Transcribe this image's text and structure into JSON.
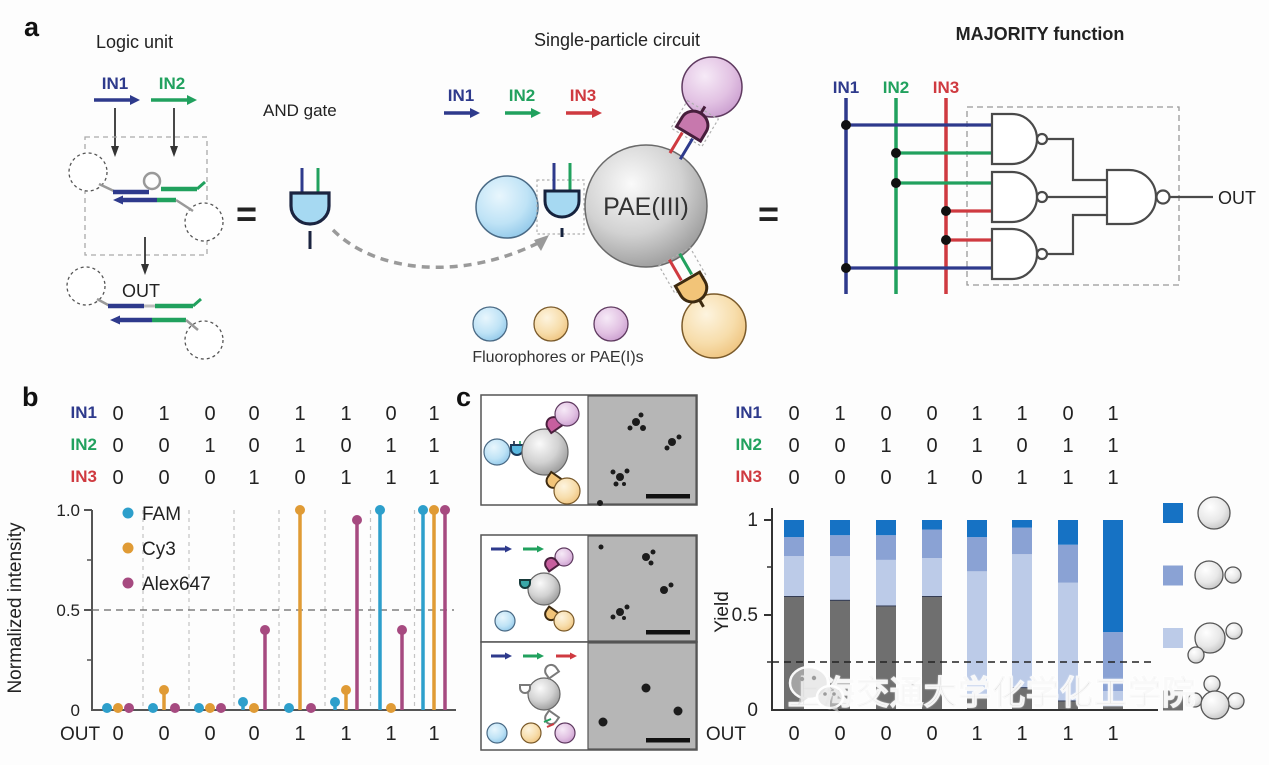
{
  "figure": {
    "panel_a": {
      "label": "a",
      "logic_unit": {
        "title": "Logic unit",
        "in1": "IN1",
        "in2": "IN2",
        "out": "OUT"
      },
      "and_gate_label": "AND gate",
      "equals": "=",
      "single_particle": {
        "title": "Single-particle circuit",
        "in1": "IN1",
        "in2": "IN2",
        "in3": "IN3",
        "core_label": "PAE(III)",
        "caption": "Fluorophores or PAE(I)s"
      },
      "majority": {
        "title": "MAJORITY function",
        "in1": "IN1",
        "in2": "IN2",
        "in3": "IN3",
        "out": "OUT"
      }
    },
    "panel_b": {
      "label": "b",
      "ylabel": "Normalized intensity",
      "yticks": [
        "1.0",
        "0.5",
        "0"
      ]
    },
    "panel_c": {
      "label": "c",
      "ylabel": "Yield",
      "yticks": [
        "1",
        "0.5",
        "0"
      ]
    },
    "watermark": {
      "text": "上海交通大学化学化工学院"
    }
  },
  "truth_table": {
    "rows": [
      {
        "label": "IN1",
        "color": "#2e3a8c",
        "values": [
          "0",
          "1",
          "0",
          "0",
          "1",
          "1",
          "0",
          "1"
        ]
      },
      {
        "label": "IN2",
        "color": "#21a15e",
        "values": [
          "0",
          "0",
          "1",
          "0",
          "1",
          "0",
          "1",
          "1"
        ]
      },
      {
        "label": "IN3",
        "color": "#cf3a40",
        "values": [
          "0",
          "0",
          "0",
          "1",
          "0",
          "1",
          "1",
          "1"
        ]
      }
    ],
    "out": {
      "label": "OUT",
      "values": [
        "0",
        "0",
        "0",
        "0",
        "1",
        "1",
        "1",
        "1"
      ]
    }
  },
  "chart_data": [
    {
      "type": "stem",
      "panel": "b",
      "title": "",
      "xlabel": "",
      "ylabel": "Normalized intensity",
      "ylim": [
        0,
        1
      ],
      "yticks": [
        0,
        0.5,
        1.0
      ],
      "threshold_line": 0.5,
      "grid": "dashed vertical separators between input columns",
      "legend_position": "upper left",
      "categories_in1in2in3": [
        "000",
        "100",
        "010",
        "001",
        "110",
        "101",
        "011",
        "111"
      ],
      "series": [
        {
          "name": "FAM",
          "color": "#2d9fcb",
          "values": [
            0.01,
            0.01,
            0.01,
            0.04,
            0.01,
            0.04,
            1.0,
            1.0
          ]
        },
        {
          "name": "Cy3",
          "color": "#e09b35",
          "values": [
            0.01,
            0.1,
            0.01,
            0.01,
            1.0,
            0.1,
            0.01,
            1.0
          ]
        },
        {
          "name": "Alex647",
          "color": "#a64a80",
          "values": [
            0.01,
            0.01,
            0.01,
            0.4,
            0.01,
            0.95,
            0.4,
            1.0
          ]
        }
      ],
      "out_row": [
        "0",
        "0",
        "0",
        "0",
        "1",
        "1",
        "1",
        "1"
      ]
    },
    {
      "type": "stacked-bar",
      "panel": "c",
      "title": "",
      "xlabel": "",
      "ylabel": "Yield",
      "ylim": [
        0,
        1
      ],
      "yticks": [
        0,
        0.5,
        1
      ],
      "threshold_line": 0.25,
      "categories_in1in2in3": [
        "000",
        "100",
        "010",
        "001",
        "110",
        "101",
        "011",
        "111"
      ],
      "series_bottom_to_top": [
        {
          "name": "PAE(III) with 3 satellite PAE(I)s",
          "color": "#6f6f6f",
          "values": [
            0.6,
            0.58,
            0.55,
            0.6,
            0.08,
            0.12,
            0.05,
            0.02
          ]
        },
        {
          "name": "PAE(III) with 2 satellite PAE(I)s",
          "color": "#bccbe8",
          "values": [
            0.21,
            0.23,
            0.24,
            0.2,
            0.65,
            0.7,
            0.62,
            0.08
          ]
        },
        {
          "name": "PAE(III) with 1 satellite PAE(I)",
          "color": "#8aa2d4",
          "values": [
            0.1,
            0.11,
            0.13,
            0.15,
            0.18,
            0.14,
            0.2,
            0.31
          ]
        },
        {
          "name": "bare PAE(III)",
          "color": "#1672c4",
          "values": [
            0.09,
            0.08,
            0.08,
            0.05,
            0.09,
            0.04,
            0.13,
            0.59
          ]
        }
      ],
      "legend_top_to_bottom": [
        {
          "swatch": "#1672c4",
          "particle": "bare PAE(III)"
        },
        {
          "swatch": "#8aa2d4",
          "particle": "PAE(III) + 1 PAE(I)"
        },
        {
          "swatch": "#bccbe8",
          "particle": "PAE(III) + 2 PAE(I)"
        },
        {
          "swatch": "#6f6f6f",
          "particle": "PAE(III) + 3 PAE(I)"
        }
      ],
      "out_row": [
        "0",
        "0",
        "0",
        "0",
        "1",
        "1",
        "1",
        "1"
      ]
    }
  ],
  "colors": {
    "in1": "#2e3a8c",
    "in2": "#21a15e",
    "in3": "#cf3a40",
    "gate_blue_fill": "#a6d9f2",
    "gate_pink_fill": "#c778ad",
    "gate_orange_fill": "#f2c478",
    "sphere_blue": "#b9e0f5",
    "sphere_orange": "#f6dca6",
    "sphere_purple": "#ddb8dc",
    "tem_background": "#b6b6b6"
  }
}
